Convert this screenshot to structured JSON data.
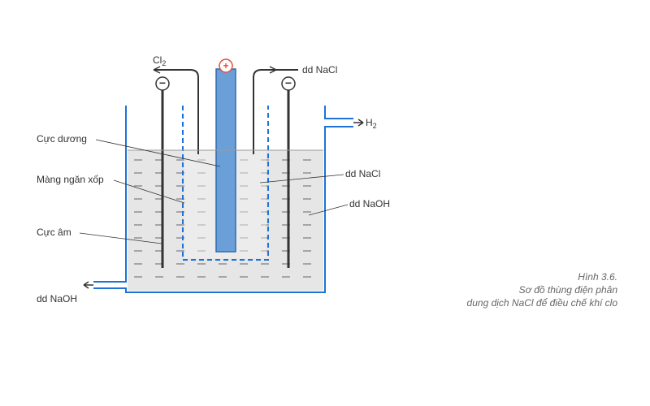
{
  "diagram": {
    "type": "infographic",
    "title_lines": [
      "Hình 3.6.",
      "Sơ đồ thùng điện phân",
      "dung dịch NaCl để điều chế khí clo"
    ],
    "title_fontsize": 12,
    "title_color": "#777777",
    "background_color": "#ffffff",
    "colors": {
      "container_stroke": "#1e73d6",
      "electrode_left_fill": "#333333",
      "electrode_left_stroke": "#333333",
      "center_fill": "#6a9fd8",
      "center_stroke": "#2f6ab0",
      "membrane_stroke": "#1e73d6",
      "liquid_fill": "#e6e6e6",
      "dash_line": "#666666",
      "text": "#333333",
      "lead": "#333333",
      "plus_fill": "#e74c3c",
      "minus_fill": "#333333"
    },
    "stroke_width": 2,
    "labels": {
      "cl2": "Cl",
      "cl2_sub": "2",
      "dd_nacl_in": "dd NaCl",
      "h2": "H",
      "h2_sub": "2",
      "cuc_duong": "Cực dương",
      "mang_ngan": "Màng ngăn xốp",
      "cuc_am": "Cực âm",
      "dd_naoh_left": "dd NaOH",
      "dd_nacl_right": "dd NaCl",
      "dd_naoh_right": "dd NaOH",
      "plus": "+",
      "minus": "−"
    }
  }
}
